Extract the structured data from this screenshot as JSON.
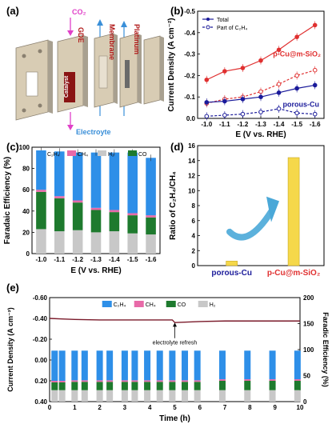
{
  "panel_labels": {
    "a": "(a)",
    "b": "(b)",
    "c": "(c)",
    "d": "(d)",
    "e": "(e)"
  },
  "panel_a": {
    "co2": "CO₂",
    "gde": "GDE",
    "membrane": "Membrane",
    "platinum": "Platinum",
    "catalyst": "Catalyst",
    "electrolyte": "Electroyte",
    "colors": {
      "co2": "#e040c8",
      "gde": "#b01818",
      "arrow": "#3a8fd8",
      "plate": "#d8ccb4",
      "dark_plate": "#a8a090"
    }
  },
  "chart_data": [
    {
      "panel": "b",
      "type": "line",
      "xlabel": "E (V vs. RHE)",
      "ylabel": "Current Density (A cm⁻²)",
      "xlim": [
        -0.95,
        -1.65
      ],
      "ylim": [
        0,
        -0.5
      ],
      "x_ticks": [
        "-1.0",
        "-1.1",
        "-1.2",
        "-1.3",
        "-1.4",
        "-1.5",
        "-1.6"
      ],
      "y_ticks": [
        "0.0",
        "-0.1",
        "-0.2",
        "-0.3",
        "-0.4",
        "-0.5"
      ],
      "legend": [
        "Total",
        "Part of C₂H₄"
      ],
      "annotations": [
        "p-Cu@m-SiO₂",
        "porous-Cu"
      ],
      "x": [
        -1.0,
        -1.1,
        -1.2,
        -1.3,
        -1.4,
        -1.5,
        -1.6
      ],
      "series": [
        {
          "group": "p-Cu@m-SiO₂",
          "kind": "total",
          "color": "#e03030",
          "values": [
            -0.18,
            -0.22,
            -0.235,
            -0.27,
            -0.32,
            -0.38,
            -0.435
          ]
        },
        {
          "group": "p-Cu@m-SiO₂",
          "kind": "c2h4",
          "color": "#e03030",
          "values": [
            -0.07,
            -0.09,
            -0.1,
            -0.125,
            -0.16,
            -0.2,
            -0.225
          ]
        },
        {
          "group": "porous-Cu",
          "kind": "total",
          "color": "#1a1a9a",
          "values": [
            -0.075,
            -0.08,
            -0.09,
            -0.1,
            -0.12,
            -0.14,
            -0.155
          ]
        },
        {
          "group": "porous-Cu",
          "kind": "c2h4",
          "color": "#1a1a9a",
          "values": [
            -0.01,
            -0.015,
            -0.02,
            -0.03,
            -0.045,
            -0.025,
            -0.02
          ]
        }
      ]
    },
    {
      "panel": "c",
      "type": "bar",
      "stacked": true,
      "xlabel": "E (V vs. RHE)",
      "ylabel": "Faradaic Efficiency (%)",
      "ylim": [
        0,
        100
      ],
      "y_ticks": [
        "0",
        "20",
        "40",
        "60",
        "80",
        "100"
      ],
      "categories": [
        "-1.0",
        "-1.1",
        "-1.2",
        "-1.3",
        "-1.4",
        "-1.5",
        "-1.6"
      ],
      "legend": [
        "C₂H₄",
        "CH₄",
        "H₂",
        "CO"
      ],
      "series": [
        {
          "name": "H₂",
          "color": "#c8c8c8",
          "values": [
            23,
            21,
            22,
            20,
            21,
            19,
            18
          ]
        },
        {
          "name": "CO",
          "color": "#1e7a2e",
          "values": [
            35,
            31,
            26,
            21,
            18,
            17,
            16
          ]
        },
        {
          "name": "CH₄",
          "color": "#e86aa8",
          "values": [
            2,
            2,
            2,
            2,
            2,
            2,
            2
          ]
        },
        {
          "name": "C₂H₄",
          "color": "#2e8fe8",
          "values": [
            37,
            42,
            45,
            52,
            54,
            57,
            54
          ]
        }
      ]
    },
    {
      "panel": "d",
      "type": "bar",
      "ylabel": "Ratio of C₂H₄/CH₄",
      "ylim": [
        0,
        16
      ],
      "y_ticks": [
        "0",
        "2",
        "4",
        "6",
        "8",
        "10",
        "12",
        "14",
        "16"
      ],
      "categories": [
        "porous-Cu",
        "p-Cu@m-SiO₂"
      ],
      "category_colors": [
        "#1a1a9a",
        "#e03030"
      ],
      "values": [
        0.6,
        14.4
      ],
      "bar_color": "#f5d84a"
    },
    {
      "panel": "e",
      "type": "bar",
      "stacked": true,
      "xlabel": "Time (h)",
      "ylabel_left": "Current Density (A cm⁻²)",
      "ylabel_right": "Faradic Efficiency (%)",
      "xlim": [
        0,
        10
      ],
      "x_ticks": [
        "0",
        "1",
        "2",
        "3",
        "4",
        "5",
        "6",
        "7",
        "8",
        "9",
        "10"
      ],
      "y_left_ticks": [
        "-0.60",
        "-0.40",
        "-0.20",
        "0.00",
        "0.20",
        "0.40"
      ],
      "y_right_ticks": [
        "0",
        "50",
        "100",
        "150",
        "200"
      ],
      "ylim_left": [
        -0.6,
        0.4
      ],
      "ylim_right": [
        0,
        200
      ],
      "annotation": "electrolyte refresh",
      "annotation_x": 5,
      "legend": [
        "C₂H₄",
        "CH₄",
        "CO",
        "H₂"
      ],
      "current_density": [
        [
          0,
          -0.4
        ],
        [
          0.5,
          -0.395
        ],
        [
          1,
          -0.39
        ],
        [
          2,
          -0.385
        ],
        [
          3,
          -0.385
        ],
        [
          4,
          -0.385
        ],
        [
          4.9,
          -0.385
        ],
        [
          5,
          -0.36
        ],
        [
          6,
          -0.37
        ],
        [
          7,
          -0.375
        ],
        [
          8,
          -0.375
        ],
        [
          9,
          -0.375
        ],
        [
          10,
          -0.375
        ]
      ],
      "times": [
        0.2,
        0.5,
        1,
        1.4,
        2,
        2.4,
        3,
        3.4,
        3.9,
        4.4,
        4.9,
        5.4,
        5.9,
        6.9,
        7.9,
        8.9,
        9.9
      ],
      "series": [
        {
          "name": "H₂",
          "color": "#c8c8c8",
          "values": [
            22,
            22,
            22,
            22,
            22,
            22,
            22,
            22,
            22,
            22,
            22,
            22,
            22,
            22,
            22,
            22,
            22
          ]
        },
        {
          "name": "CO",
          "color": "#1e7a2e",
          "values": [
            15,
            15,
            16,
            16,
            16,
            16,
            16,
            16,
            16,
            16,
            16,
            16,
            16,
            18,
            18,
            18,
            18
          ]
        },
        {
          "name": "CH₄",
          "color": "#e86aa8",
          "values": [
            3,
            3,
            3,
            3,
            3,
            3,
            3,
            3,
            3,
            3,
            3,
            3,
            3,
            3,
            3,
            3,
            3
          ]
        },
        {
          "name": "C₂H₄",
          "color": "#2e8fe8",
          "values": [
            58,
            58,
            57,
            57,
            57,
            57,
            57,
            57,
            57,
            57,
            57,
            57,
            57,
            55,
            55,
            55,
            55
          ]
        }
      ]
    }
  ]
}
